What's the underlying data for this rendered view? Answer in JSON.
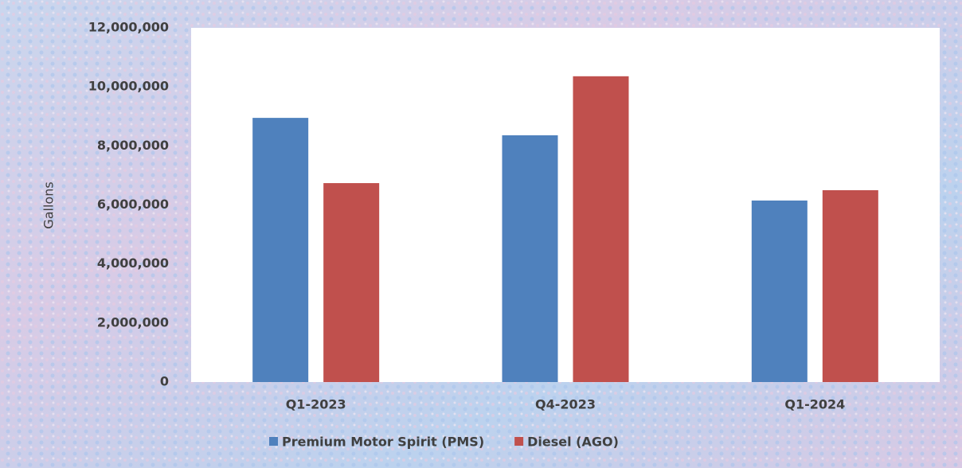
{
  "chart_data": {
    "type": "bar",
    "y_label": "Gallons",
    "categories": [
      "Q1-2023",
      "Q4-2023",
      "Q1-2024"
    ],
    "series": [
      {
        "name": "Premium Motor Spirit (PMS)",
        "color": "#4f81bd",
        "values": [
          8950000,
          8360000,
          6150000
        ]
      },
      {
        "name": "Diesel (AGO)",
        "color": "#c0504d",
        "values": [
          6740000,
          10360000,
          6500000
        ]
      }
    ],
    "ylim": [
      0,
      12000000
    ],
    "yticks": [
      0,
      {
        "value": 2000000,
        "label": "2,000,000"
      },
      {
        "value": 4000000,
        "label": "4,000,000"
      },
      {
        "value": 6000000,
        "label": "6,000,000"
      },
      {
        "value": 8000000,
        "label": "8,000,000"
      },
      {
        "value": 10000000,
        "label": "10,000,000"
      },
      {
        "value": 12000000,
        "label": "12,000,000"
      }
    ],
    "grid": false,
    "legend": "bottom"
  }
}
